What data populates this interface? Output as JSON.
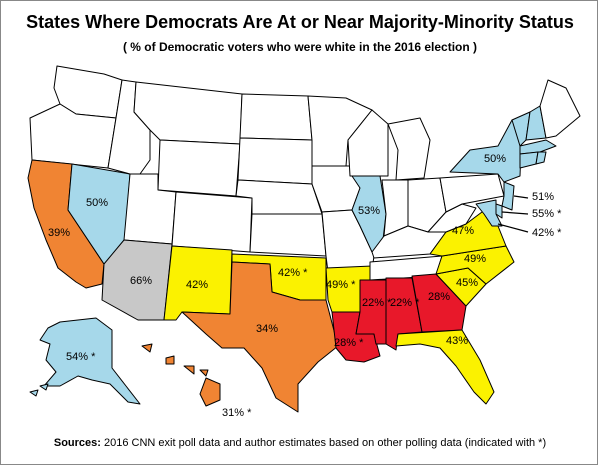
{
  "title": "States Where Democrats Are At or Near Majority-Minority Status",
  "subtitle": "( % of Democratic voters who were white in the 2016 election )",
  "source": {
    "prefix": "Sources:",
    "text": "2016 CNN exit poll data and author estimates based on other polling data (indicated with *)"
  },
  "colors": {
    "light_blue": "#a6d8ea",
    "orange": "#f08433",
    "yellow": "#fbf200",
    "red": "#e8182a",
    "gray": "#c8c8c8",
    "white": "#ffffff",
    "border": "#000000"
  },
  "states": {
    "washington": "",
    "oregon": "",
    "idaho": "",
    "montana": "",
    "wyoming": "",
    "california": "39%",
    "nevada": "50%",
    "utah": "",
    "colorado": "",
    "arizona": "66%",
    "new_mexico": "42%",
    "north_dakota": "",
    "south_dakota": "",
    "nebraska": "",
    "kansas": "",
    "oklahoma": "42% *",
    "texas": "34%",
    "minnesota": "",
    "iowa": "",
    "missouri": "",
    "arkansas": "49% *",
    "louisiana": "28% *",
    "wisconsin": "",
    "illinois": "53%",
    "michigan": "",
    "indiana": "",
    "ohio": "",
    "kentucky": "",
    "tennessee": "",
    "mississippi": "22% *",
    "alabama": "22% *",
    "georgia": "28%",
    "florida": "43%",
    "south_carolina": "45%",
    "north_carolina": "49%",
    "virginia": "47%",
    "west_virginia": "",
    "pennsylvania": "",
    "new_york": "50%",
    "new_jersey": "51%",
    "delaware": "55% *",
    "maryland": "42% *",
    "alaska": "54% *",
    "hawaii": "31% *"
  }
}
